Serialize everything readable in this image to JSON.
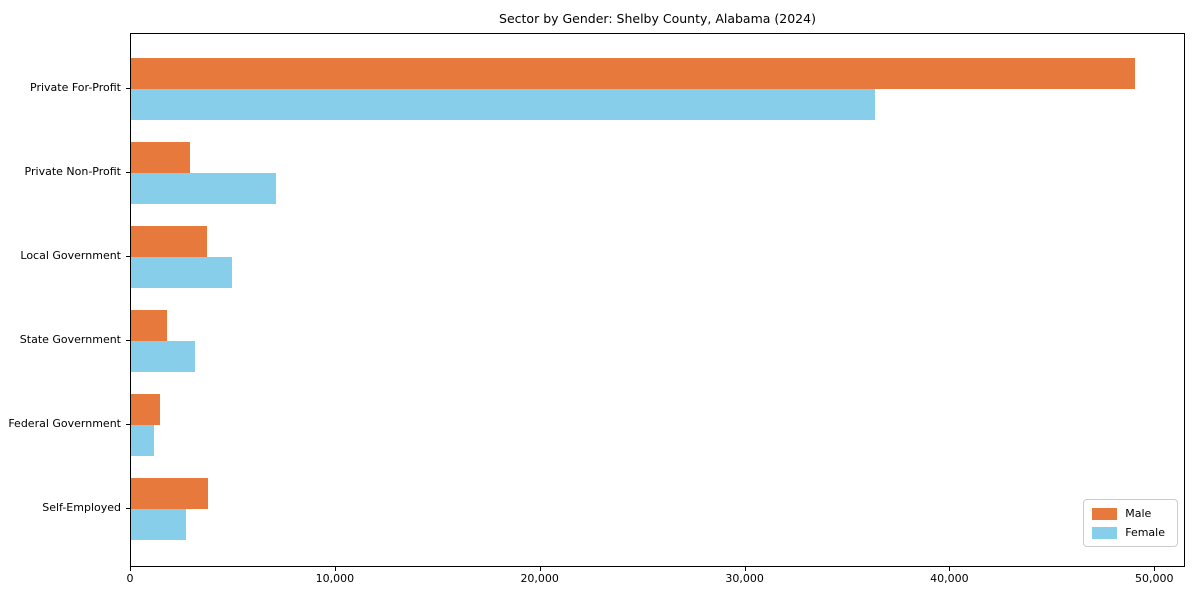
{
  "chart_data": {
    "type": "bar",
    "orientation": "horizontal",
    "title": "Sector by Gender: Shelby County, Alabama (2024)",
    "categories": [
      "Private For-Profit",
      "Private Non-Profit",
      "Local Government",
      "State Government",
      "Federal Government",
      "Self-Employed"
    ],
    "series": [
      {
        "name": "Male",
        "color": "#E8793D",
        "values": [
          49000,
          2900,
          3700,
          1750,
          1400,
          3750
        ]
      },
      {
        "name": "Female",
        "color": "#87CEEB",
        "values": [
          36300,
          7100,
          4950,
          3100,
          1100,
          2700
        ]
      }
    ],
    "xlabel": "",
    "ylabel": "",
    "xlim": [
      0,
      51500
    ],
    "x_ticks": [
      0,
      10000,
      20000,
      30000,
      40000,
      50000
    ],
    "x_tick_labels": [
      "0",
      "10,000",
      "20,000",
      "30,000",
      "40,000",
      "50,000"
    ],
    "legend": {
      "location": "lower right"
    },
    "grid": false,
    "background": "#ffffff"
  }
}
